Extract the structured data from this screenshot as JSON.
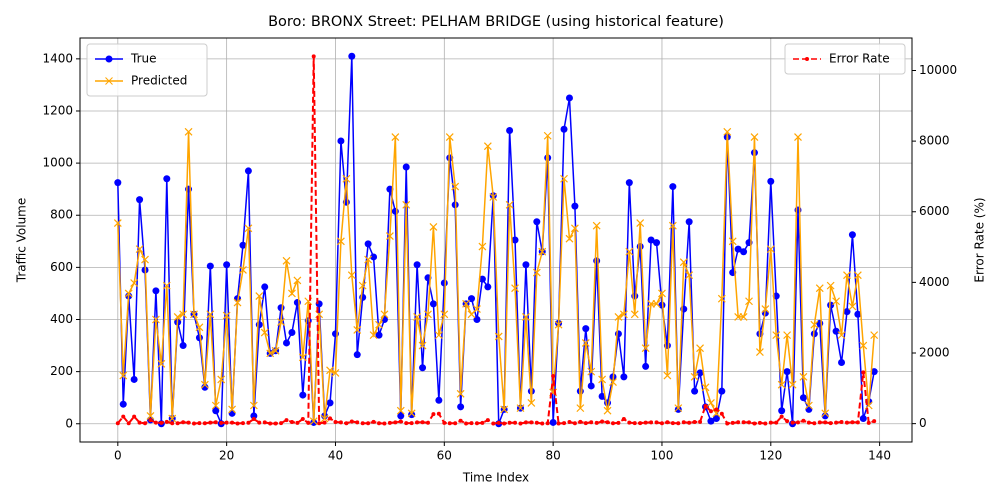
{
  "chart_data": {
    "type": "line",
    "title": "Boro: BRONX Street: PELHAM BRIDGE (using historical feature)",
    "xlabel": "Time Index",
    "ylabel": "Traffic Volume",
    "y2label": "Error Rate (%)",
    "x": [
      0,
      1,
      2,
      3,
      4,
      5,
      6,
      7,
      8,
      9,
      10,
      11,
      12,
      13,
      14,
      15,
      16,
      17,
      18,
      19,
      20,
      21,
      22,
      23,
      24,
      25,
      26,
      27,
      28,
      29,
      30,
      31,
      32,
      33,
      34,
      35,
      36,
      37,
      38,
      39,
      40,
      41,
      42,
      43,
      44,
      45,
      46,
      47,
      48,
      49,
      50,
      51,
      52,
      53,
      54,
      55,
      56,
      57,
      58,
      59,
      60,
      61,
      62,
      63,
      64,
      65,
      66,
      67,
      68,
      69,
      70,
      71,
      72,
      73,
      74,
      75,
      76,
      77,
      78,
      79,
      80,
      81,
      82,
      83,
      84,
      85,
      86,
      87,
      88,
      89,
      90,
      91,
      92,
      93,
      94,
      95,
      96,
      97,
      98,
      99,
      100,
      101,
      102,
      103,
      104,
      105,
      106,
      107,
      108,
      109,
      110,
      111,
      112,
      113,
      114,
      115,
      116,
      117,
      118,
      119,
      120,
      121,
      122,
      123,
      124,
      125,
      126,
      127,
      128,
      129,
      130,
      131,
      132,
      133,
      134,
      135,
      136,
      137,
      138,
      139
    ],
    "series": [
      {
        "name": "True",
        "color": "#0000ff",
        "marker": "o",
        "axis": "y",
        "values": [
          925,
          75,
          490,
          170,
          860,
          590,
          15,
          510,
          0,
          940,
          20,
          390,
          300,
          900,
          420,
          330,
          140,
          605,
          50,
          0,
          610,
          40,
          480,
          685,
          970,
          30,
          380,
          525,
          270,
          280,
          445,
          310,
          350,
          465,
          110,
          395,
          5,
          460,
          30,
          80,
          345,
          1085,
          850,
          1410,
          265,
          485,
          690,
          640,
          340,
          400,
          900,
          815,
          30,
          985,
          35,
          610,
          215,
          560,
          460,
          90,
          540,
          1020,
          840,
          65,
          460,
          480,
          400,
          555,
          525,
          875,
          0,
          55,
          1125,
          705,
          60,
          610,
          125,
          775,
          660,
          1020,
          5,
          385,
          1130,
          1250,
          835,
          125,
          365,
          145,
          625,
          105,
          80,
          180,
          345,
          180,
          925,
          490,
          680,
          220,
          705,
          695,
          455,
          300,
          910,
          55,
          440,
          775,
          125,
          195,
          65,
          10,
          20,
          125,
          1100,
          580,
          670,
          660,
          695,
          1040,
          345,
          425,
          930,
          490,
          50,
          200,
          0,
          820,
          100,
          55,
          345,
          385,
          30,
          455,
          355,
          235,
          430,
          725,
          420,
          20,
          85,
          200
        ]
      },
      {
        "name": "Predicted",
        "color": "#ffa500",
        "marker": "x",
        "axis": "y",
        "values": [
          770,
          185,
          500,
          540,
          670,
          630,
          30,
          400,
          230,
          530,
          20,
          410,
          420,
          1120,
          420,
          370,
          150,
          420,
          70,
          170,
          415,
          55,
          465,
          590,
          750,
          70,
          490,
          350,
          270,
          280,
          390,
          625,
          500,
          550,
          255,
          470,
          10,
          420,
          20,
          205,
          195,
          700,
          940,
          570,
          360,
          530,
          630,
          340,
          380,
          420,
          720,
          1100,
          50,
          840,
          40,
          410,
          300,
          420,
          755,
          340,
          420,
          1100,
          910,
          115,
          460,
          420,
          440,
          680,
          1065,
          870,
          335,
          55,
          840,
          520,
          60,
          410,
          80,
          580,
          660,
          1105,
          120,
          380,
          940,
          710,
          750,
          60,
          310,
          200,
          760,
          170,
          50,
          160,
          410,
          420,
          660,
          420,
          770,
          290,
          460,
          460,
          500,
          185,
          760,
          60,
          620,
          570,
          180,
          290,
          140,
          80,
          40,
          480,
          1120,
          700,
          410,
          410,
          470,
          1100,
          275,
          440,
          670,
          340,
          150,
          340,
          150,
          1100,
          180,
          70,
          380,
          520,
          40,
          530,
          470,
          340,
          570,
          450,
          570,
          300,
          70,
          340
        ]
      },
      {
        "name": "Error Rate",
        "color": "#ff0000",
        "marker": ".",
        "axis": "y2",
        "dashed": true,
        "values": [
          10,
          200,
          10,
          200,
          30,
          10,
          100,
          30,
          20,
          50,
          10,
          10,
          40,
          30,
          5,
          15,
          10,
          30,
          40,
          20,
          30,
          30,
          5,
          15,
          25,
          130,
          30,
          35,
          5,
          5,
          15,
          100,
          45,
          20,
          130,
          20,
          10400,
          10,
          30,
          150,
          45,
          35,
          10,
          60,
          35,
          10,
          10,
          50,
          10,
          5,
          20,
          35,
          60,
          15,
          15,
          35,
          40,
          25,
          270,
          280,
          20,
          10,
          10,
          80,
          5,
          15,
          10,
          20,
          100,
          5,
          20,
          5,
          25,
          25,
          5,
          35,
          35,
          25,
          5,
          10,
          1350,
          5,
          15,
          45,
          10,
          50,
          15,
          40,
          20,
          60,
          40,
          10,
          20,
          130,
          30,
          15,
          15,
          30,
          35,
          35,
          10,
          40,
          15,
          10,
          40,
          25,
          45,
          50,
          500,
          350,
          400,
          280,
          5,
          20,
          40,
          40,
          35,
          5,
          20,
          5,
          30,
          30,
          200,
          70,
          30,
          35,
          80,
          30,
          10,
          35,
          35,
          15,
          30,
          45,
          30,
          40,
          35,
          1450,
          20,
          70
        ]
      }
    ],
    "xlim": [
      -6.95,
      145.95
    ],
    "xticks": [
      0,
      20,
      40,
      60,
      80,
      100,
      120,
      140
    ],
    "ylim": [
      -70,
      1480
    ],
    "yticks": [
      0,
      200,
      400,
      600,
      800,
      1000,
      1200,
      1400
    ],
    "y2lim": [
      -520,
      10920
    ],
    "y2ticks": [
      0,
      2000,
      4000,
      6000,
      8000,
      10000
    ],
    "grid": true,
    "legend": "upper left",
    "legend2": "upper right"
  }
}
